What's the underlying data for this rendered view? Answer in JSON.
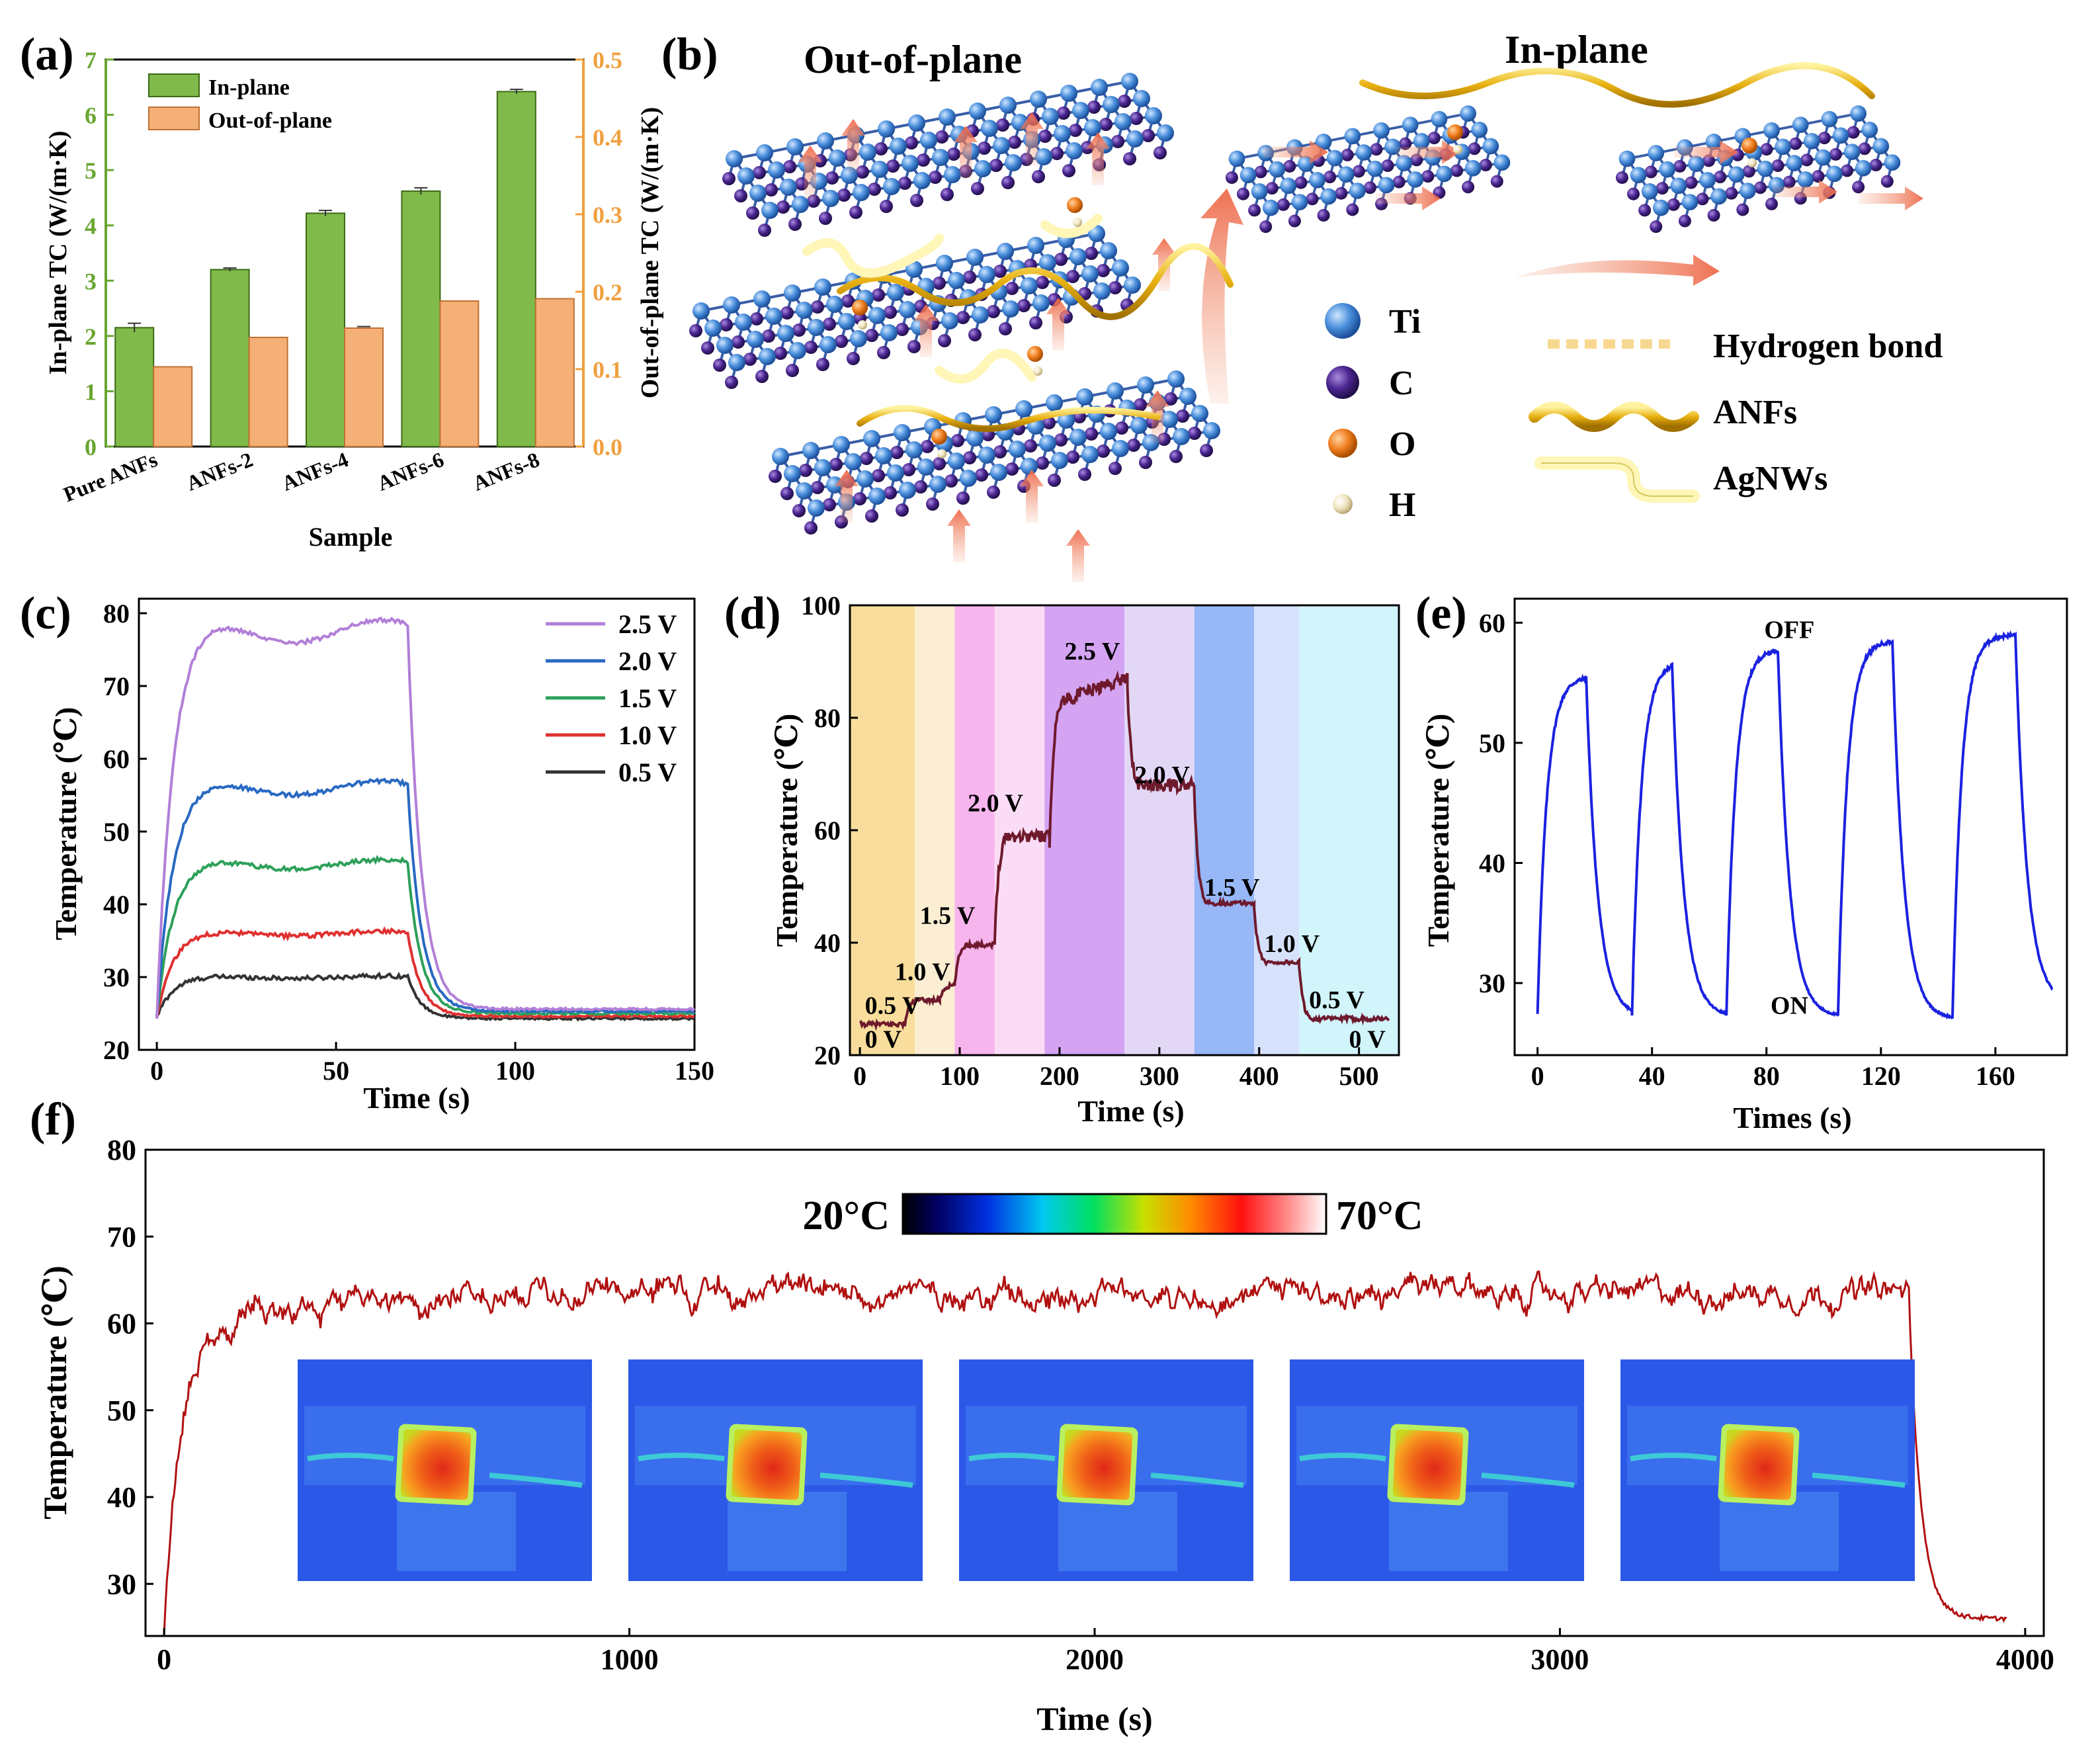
{
  "panel_labels": [
    "(a)",
    "(b)",
    "(c)",
    "(d)",
    "(e)",
    "(f)"
  ],
  "chart_data": [
    {
      "id": "a",
      "type": "bar",
      "categories": [
        "Pure ANFs",
        "ANFs-2",
        "ANFs-4",
        "ANFs-6",
        "ANFs-8"
      ],
      "series": [
        {
          "name": "In-plane",
          "axis": "left",
          "values": [
            2.15,
            3.2,
            4.22,
            4.62,
            6.42
          ],
          "errors": [
            0.08,
            0.03,
            0.05,
            0.06,
            0.04
          ],
          "color": "#7fba4b"
        },
        {
          "name": "Out-of-plane",
          "axis": "right",
          "values": [
            0.103,
            0.141,
            0.153,
            0.188,
            0.191
          ],
          "errors": [
            0.0,
            0.0,
            0.002,
            0.0,
            0.0
          ],
          "color": "#f5b078"
        }
      ],
      "xlabel": "Sample",
      "ylabel": "In-plane TC (W/(m·K)",
      "ylabel_right": "Out-of-plane TC (W/(m·K)",
      "ylim": [
        0,
        7
      ],
      "ylim_right": [
        0,
        0.5
      ],
      "yticks": [
        0,
        1,
        2,
        3,
        4,
        5,
        6,
        7
      ],
      "yticks_right": [
        "0.0",
        "0.1",
        "0.2",
        "0.3",
        "0.4",
        "0.5"
      ],
      "left_axis_color": "#6aa632",
      "right_axis_color": "#f0a040"
    },
    {
      "id": "c",
      "type": "line",
      "xlabel": "Time (s)",
      "ylabel": "Temperature (℃)",
      "xlim": [
        -5,
        150
      ],
      "ylim": [
        20,
        82
      ],
      "xticks": [
        0,
        50,
        100,
        150
      ],
      "yticks": [
        20,
        30,
        40,
        50,
        60,
        70,
        80
      ],
      "series": [
        {
          "name": "2.5 V",
          "color": "#b27fd8",
          "plateau": 77.5,
          "final": 25.6
        },
        {
          "name": "2.0 V",
          "color": "#2869c2",
          "plateau": 56.0,
          "final": 25.3
        },
        {
          "name": "1.5 V",
          "color": "#2ea05a",
          "plateau": 45.5,
          "final": 25.0
        },
        {
          "name": "1.0 V",
          "color": "#e03030",
          "plateau": 36.0,
          "final": 24.6
        },
        {
          "name": "0.5 V",
          "color": "#333333",
          "plateau": 30.0,
          "final": 24.3
        }
      ],
      "start": 24.5,
      "off_time": 70
    },
    {
      "id": "d",
      "type": "line",
      "xlabel": "Time (s)",
      "ylabel": "Temperature (℃)",
      "xlim": [
        -10,
        540
      ],
      "ylim": [
        20,
        100
      ],
      "xticks": [
        0,
        100,
        200,
        300,
        400,
        500
      ],
      "yticks": [
        20,
        40,
        60,
        80,
        100
      ],
      "color": "#6e1a2c",
      "steps": [
        {
          "t0": 0,
          "t1": 45,
          "level": 25.5
        },
        {
          "t0": 45,
          "t1": 80,
          "level": 30.0
        },
        {
          "t0": 80,
          "t1": 95,
          "level": 32.5
        },
        {
          "t0": 95,
          "t1": 135,
          "level": 40.0
        },
        {
          "t0": 135,
          "t1": 190,
          "level": 60.0
        },
        {
          "t0": 190,
          "t1": 268,
          "level": 86.0
        },
        {
          "t0": 268,
          "t1": 335,
          "level": 67.0
        },
        {
          "t0": 335,
          "t1": 395,
          "level": 46.0
        },
        {
          "t0": 395,
          "t1": 440,
          "level": 36.0
        },
        {
          "t0": 440,
          "t1": 530,
          "level": 26.0
        }
      ],
      "bands": [
        {
          "t0": -10,
          "t1": 55,
          "color": "#f8dd9c"
        },
        {
          "t0": 55,
          "t1": 95,
          "color": "#fbeed2"
        },
        {
          "t0": 95,
          "t1": 135,
          "color": "#f7b5ee"
        },
        {
          "t0": 135,
          "t1": 185,
          "color": "#fbdcf6"
        },
        {
          "t0": 185,
          "t1": 265,
          "color": "#d4a4f3"
        },
        {
          "t0": 265,
          "t1": 335,
          "color": "#e2d8f6"
        },
        {
          "t0": 335,
          "t1": 395,
          "color": "#97b7f7"
        },
        {
          "t0": 395,
          "t1": 440,
          "color": "#d6e1fb"
        },
        {
          "t0": 440,
          "t1": 540,
          "color": "#d2f4fb"
        }
      ],
      "annotations": [
        {
          "text": "0 V",
          "t": 5,
          "y": 23
        },
        {
          "text": "0.5 V",
          "t": 5,
          "y": 29
        },
        {
          "text": "1.0 V",
          "t": 35,
          "y": 35
        },
        {
          "text": "1.5 V",
          "t": 60,
          "y": 45
        },
        {
          "text": "2.0 V",
          "t": 108,
          "y": 65
        },
        {
          "text": "2.5 V",
          "t": 205,
          "y": 92
        },
        {
          "text": "2.0 V",
          "t": 275,
          "y": 70
        },
        {
          "text": "1.5 V",
          "t": 345,
          "y": 50
        },
        {
          "text": "1.0 V",
          "t": 405,
          "y": 40
        },
        {
          "text": "0.5 V",
          "t": 450,
          "y": 30
        },
        {
          "text": "0 V",
          "t": 490,
          "y": 23
        }
      ]
    },
    {
      "id": "e",
      "type": "line",
      "xlabel": "Times (s)",
      "ylabel": "Temperature (℃)",
      "xlim": [
        -8,
        185
      ],
      "ylim": [
        24,
        62
      ],
      "xticks": [
        0,
        40,
        80,
        120,
        160
      ],
      "yticks": [
        30,
        40,
        50,
        60
      ],
      "color": "#1a22e0",
      "cycles": [
        {
          "on": 0,
          "off": 17,
          "end": 33,
          "peak": 55.5,
          "low": 27.2
        },
        {
          "on": 33,
          "off": 47,
          "end": 66,
          "peak": 56.8,
          "low": 27.2
        },
        {
          "on": 66,
          "off": 84,
          "end": 105,
          "peak": 57.8,
          "low": 27.2
        },
        {
          "on": 105,
          "off": 124,
          "end": 145,
          "peak": 58.5,
          "low": 27.0
        },
        {
          "on": 145,
          "off": 167,
          "end": 180,
          "peak": 59.0,
          "low": 28.3
        }
      ],
      "start": 27.5,
      "annotations": [
        {
          "text": "OFF",
          "t": 88,
          "y": 59.5
        },
        {
          "text": "ON",
          "t": 88,
          "y": 28.2
        }
      ]
    },
    {
      "id": "f",
      "type": "line",
      "xlabel": "Time (s)",
      "ylabel": "Temperature (℃)",
      "xlim": [
        -40,
        4040
      ],
      "ylim": [
        24,
        80
      ],
      "xticks": [
        0,
        1000,
        2000,
        3000,
        4000
      ],
      "yticks": [
        30,
        40,
        50,
        60,
        70,
        80
      ],
      "color": "#b01010",
      "start": 26.5,
      "plateau": 63.5,
      "off_time": 3750,
      "final": 26.0,
      "end_time": 3960,
      "colorbar": {
        "min_label": "20°C",
        "max_label": "70°C"
      }
    }
  ],
  "schematic": {
    "title_out": "Out-of-plane",
    "title_in": "In-plane",
    "legend": [
      {
        "label": "Ti",
        "color": "#4a8fdc"
      },
      {
        "label": "C",
        "color": "#4a2590"
      },
      {
        "label": "O",
        "color": "#f08020"
      },
      {
        "label": "H",
        "color": "#efe3bd"
      }
    ],
    "legend2": [
      {
        "label": "Hydrogen bond",
        "color": "#f7dca0"
      },
      {
        "label": "ANFs",
        "color": "#e8b010"
      },
      {
        "label": "AgNWs",
        "color": "#f5f0a8"
      }
    ]
  }
}
